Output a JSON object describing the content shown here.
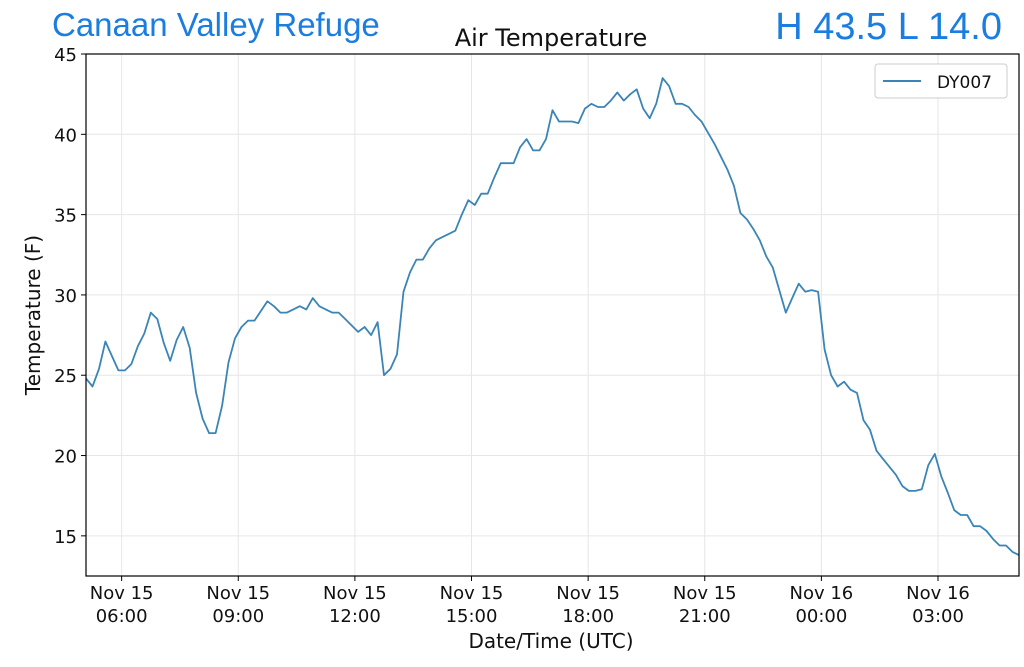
{
  "header": {
    "station_name": "Canaan Valley Refuge",
    "hilo": "H 43.5 L 14.0",
    "accent_color": "#1a7de0"
  },
  "chart_data": {
    "type": "line",
    "title": "Air Temperature",
    "xlabel": "Date/Time (UTC)",
    "ylabel": "Temperature (F)",
    "ylim": [
      12.5,
      45
    ],
    "xlim": [
      "2023-11-15T05:05",
      "2023-11-16T05:05"
    ],
    "yticks": [
      15,
      20,
      25,
      30,
      35,
      40,
      45
    ],
    "xticks": [
      {
        "at": "2023-11-15T06:00",
        "line1": "Nov 15",
        "line2": "06:00"
      },
      {
        "at": "2023-11-15T09:00",
        "line1": "Nov 15",
        "line2": "09:00"
      },
      {
        "at": "2023-11-15T12:00",
        "line1": "Nov 15",
        "line2": "12:00"
      },
      {
        "at": "2023-11-15T15:00",
        "line1": "Nov 15",
        "line2": "15:00"
      },
      {
        "at": "2023-11-15T18:00",
        "line1": "Nov 15",
        "line2": "18:00"
      },
      {
        "at": "2023-11-15T21:00",
        "line1": "Nov 15",
        "line2": "21:00"
      },
      {
        "at": "2023-11-16T00:00",
        "line1": "Nov 16",
        "line2": "00:00"
      },
      {
        "at": "2023-11-16T03:00",
        "line1": "Nov 16",
        "line2": "03:00"
      }
    ],
    "grid": true,
    "legend_position": "top-right",
    "series": [
      {
        "name": "DY007",
        "color": "#3a85b6",
        "x": [
          "2023-11-15T05:05",
          "2023-11-15T05:15",
          "2023-11-15T05:25",
          "2023-11-15T05:35",
          "2023-11-15T05:45",
          "2023-11-15T05:55",
          "2023-11-15T06:05",
          "2023-11-15T06:15",
          "2023-11-15T06:25",
          "2023-11-15T06:35",
          "2023-11-15T06:45",
          "2023-11-15T06:55",
          "2023-11-15T07:05",
          "2023-11-15T07:15",
          "2023-11-15T07:25",
          "2023-11-15T07:35",
          "2023-11-15T07:45",
          "2023-11-15T07:55",
          "2023-11-15T08:05",
          "2023-11-15T08:15",
          "2023-11-15T08:25",
          "2023-11-15T08:35",
          "2023-11-15T08:45",
          "2023-11-15T08:55",
          "2023-11-15T09:05",
          "2023-11-15T09:15",
          "2023-11-15T09:25",
          "2023-11-15T09:35",
          "2023-11-15T09:45",
          "2023-11-15T09:55",
          "2023-11-15T10:05",
          "2023-11-15T10:15",
          "2023-11-15T10:25",
          "2023-11-15T10:35",
          "2023-11-15T10:45",
          "2023-11-15T10:55",
          "2023-11-15T11:05",
          "2023-11-15T11:15",
          "2023-11-15T11:25",
          "2023-11-15T11:35",
          "2023-11-15T11:45",
          "2023-11-15T11:55",
          "2023-11-15T12:05",
          "2023-11-15T12:15",
          "2023-11-15T12:25",
          "2023-11-15T12:35",
          "2023-11-15T12:45",
          "2023-11-15T12:55",
          "2023-11-15T13:05",
          "2023-11-15T13:15",
          "2023-11-15T13:25",
          "2023-11-15T13:35",
          "2023-11-15T13:45",
          "2023-11-15T13:55",
          "2023-11-15T14:05",
          "2023-11-15T14:15",
          "2023-11-15T14:25",
          "2023-11-15T14:35",
          "2023-11-15T14:45",
          "2023-11-15T14:55",
          "2023-11-15T15:05",
          "2023-11-15T15:15",
          "2023-11-15T15:25",
          "2023-11-15T15:35",
          "2023-11-15T15:45",
          "2023-11-15T15:55",
          "2023-11-15T16:05",
          "2023-11-15T16:15",
          "2023-11-15T16:25",
          "2023-11-15T16:35",
          "2023-11-15T16:45",
          "2023-11-15T16:55",
          "2023-11-15T17:05",
          "2023-11-15T17:15",
          "2023-11-15T17:25",
          "2023-11-15T17:35",
          "2023-11-15T17:45",
          "2023-11-15T17:55",
          "2023-11-15T18:05",
          "2023-11-15T18:15",
          "2023-11-15T18:25",
          "2023-11-15T18:35",
          "2023-11-15T18:45",
          "2023-11-15T18:55",
          "2023-11-15T19:05",
          "2023-11-15T19:15",
          "2023-11-15T19:25",
          "2023-11-15T19:35",
          "2023-11-15T19:45",
          "2023-11-15T19:55",
          "2023-11-15T20:05",
          "2023-11-15T20:15",
          "2023-11-15T20:25",
          "2023-11-15T20:35",
          "2023-11-15T20:45",
          "2023-11-15T20:55",
          "2023-11-15T21:05",
          "2023-11-15T21:15",
          "2023-11-15T21:25",
          "2023-11-15T21:35",
          "2023-11-15T21:45",
          "2023-11-15T21:55",
          "2023-11-15T22:05",
          "2023-11-15T22:15",
          "2023-11-15T22:25",
          "2023-11-15T22:35",
          "2023-11-15T22:45",
          "2023-11-15T22:55",
          "2023-11-15T23:05",
          "2023-11-15T23:15",
          "2023-11-15T23:25",
          "2023-11-15T23:35",
          "2023-11-15T23:45",
          "2023-11-15T23:55",
          "2023-11-16T00:05",
          "2023-11-16T00:15",
          "2023-11-16T00:25",
          "2023-11-16T00:35",
          "2023-11-16T00:45",
          "2023-11-16T00:55",
          "2023-11-16T01:05",
          "2023-11-16T01:15",
          "2023-11-16T01:25",
          "2023-11-16T01:35",
          "2023-11-16T01:45",
          "2023-11-16T01:55",
          "2023-11-16T02:05",
          "2023-11-16T02:15",
          "2023-11-16T02:25",
          "2023-11-16T02:35",
          "2023-11-16T02:45",
          "2023-11-16T02:55",
          "2023-11-16T03:05",
          "2023-11-16T03:15",
          "2023-11-16T03:25",
          "2023-11-16T03:35",
          "2023-11-16T03:45",
          "2023-11-16T03:55",
          "2023-11-16T04:05",
          "2023-11-16T04:15",
          "2023-11-16T04:25",
          "2023-11-16T04:35",
          "2023-11-16T04:45",
          "2023-11-16T04:55",
          "2023-11-16T05:05"
        ],
        "values": [
          24.8,
          24.3,
          25.4,
          27.1,
          26.2,
          25.3,
          25.3,
          25.7,
          26.8,
          27.6,
          28.9,
          28.5,
          27.0,
          25.9,
          27.2,
          28.0,
          26.7,
          23.9,
          22.3,
          21.4,
          21.4,
          23.1,
          25.8,
          27.3,
          28.0,
          28.4,
          28.4,
          29.0,
          29.6,
          29.3,
          28.9,
          28.9,
          29.1,
          29.3,
          29.1,
          29.8,
          29.3,
          29.1,
          28.9,
          28.9,
          28.5,
          28.1,
          27.7,
          28.0,
          27.5,
          28.3,
          25.0,
          25.4,
          26.3,
          30.2,
          31.4,
          32.2,
          32.2,
          32.9,
          33.4,
          33.6,
          33.8,
          34.0,
          35.0,
          35.9,
          35.6,
          36.3,
          36.3,
          37.3,
          38.2,
          38.2,
          38.2,
          39.2,
          39.7,
          39.0,
          39.0,
          39.7,
          41.5,
          40.8,
          40.8,
          40.8,
          40.7,
          41.6,
          41.9,
          41.7,
          41.7,
          42.1,
          42.6,
          42.1,
          42.5,
          42.8,
          41.6,
          41.0,
          41.9,
          43.5,
          43.0,
          41.9,
          41.9,
          41.7,
          41.2,
          40.8,
          40.1,
          39.4,
          38.6,
          37.8,
          36.8,
          35.1,
          34.7,
          34.1,
          33.4,
          32.4,
          31.7,
          30.3,
          28.9,
          29.8,
          30.7,
          30.2,
          30.3,
          30.2,
          26.6,
          25.0,
          24.3,
          24.6,
          24.1,
          23.9,
          22.2,
          21.6,
          20.3,
          19.8,
          19.3,
          18.8,
          18.1,
          17.8,
          17.8,
          17.9,
          19.4,
          20.1,
          18.7,
          17.7,
          16.6,
          16.3,
          16.3,
          15.6,
          15.6,
          15.3,
          14.8,
          14.4,
          14.4,
          14.0,
          13.8
        ]
      }
    ]
  }
}
